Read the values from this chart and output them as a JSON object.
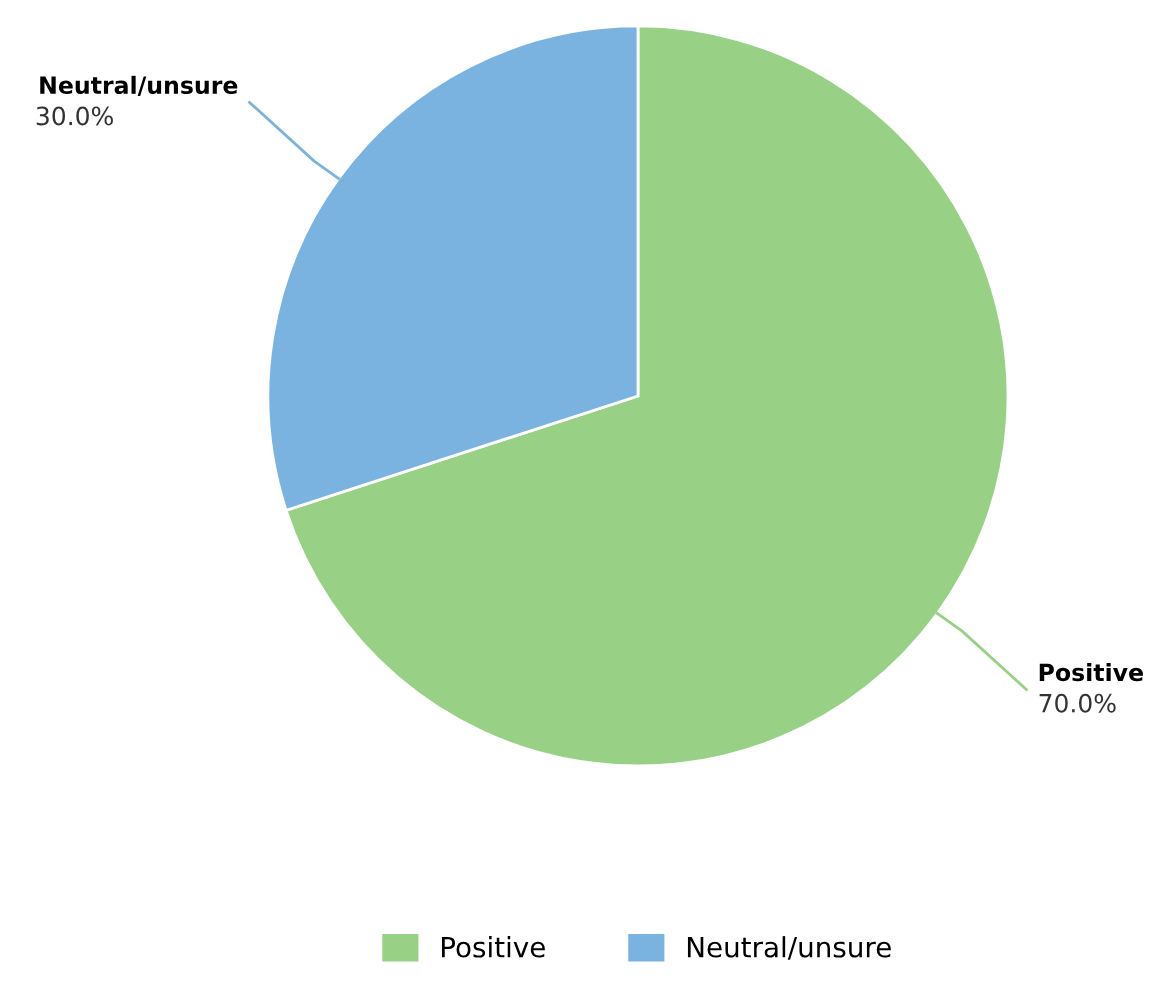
{
  "chart_data": {
    "type": "pie",
    "categories": [
      "Positive",
      "Neutral/unsure"
    ],
    "values": [
      70,
      30
    ],
    "colors": [
      "#98d085",
      "#7ab3df"
    ],
    "value_labels": [
      "70.0%",
      "30.0%"
    ],
    "legend": "bottom"
  }
}
